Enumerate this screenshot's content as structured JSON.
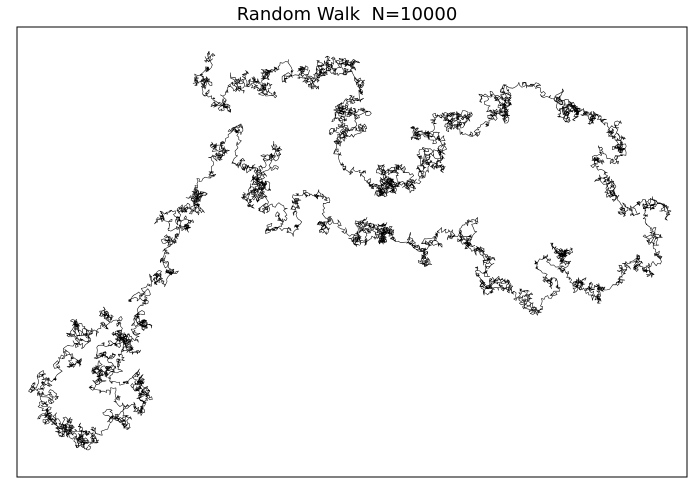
{
  "chart_data": {
    "type": "line",
    "title": "Random Walk  N=10000",
    "xlabel": "",
    "ylabel": "",
    "n_steps": 10000,
    "axis_ticks": "none",
    "grid": false,
    "legend": "none",
    "series": [
      {
        "line_color": "#000000",
        "description_points": [
          [
            -3.4,
            4.1
          ],
          [
            -3.1,
            3.3
          ],
          [
            -2.7,
            3.7
          ],
          [
            -2.3,
            3.9
          ],
          [
            -1.4,
            3.6
          ],
          [
            -1.2,
            4.0
          ],
          [
            -0.6,
            3.8
          ],
          [
            -0.9,
            3.1
          ],
          [
            -1.0,
            2.6
          ],
          [
            -0.7,
            2.0
          ],
          [
            -0.2,
            1.6
          ],
          [
            0.0,
            1.9
          ],
          [
            0.4,
            1.7
          ],
          [
            0.8,
            2.0
          ],
          [
            0.5,
            2.6
          ],
          [
            1.2,
            3.0
          ],
          [
            1.6,
            2.7
          ],
          [
            2.1,
            3.1
          ],
          [
            2.6,
            3.6
          ],
          [
            3.2,
            3.3
          ],
          [
            3.8,
            3.0
          ],
          [
            4.3,
            2.4
          ],
          [
            4.0,
            1.8
          ],
          [
            4.6,
            1.3
          ],
          [
            4.9,
            0.6
          ],
          [
            4.4,
            0.1
          ],
          [
            3.8,
            -0.3
          ],
          [
            3.3,
            0.3
          ],
          [
            2.8,
            0.0
          ],
          [
            2.5,
            -0.7
          ],
          [
            2.0,
            -0.2
          ],
          [
            1.6,
            0.4
          ],
          [
            1.0,
            0.8
          ],
          [
            0.5,
            0.5
          ],
          [
            -0.1,
            0.9
          ],
          [
            -0.6,
            0.7
          ],
          [
            -1.2,
            1.0
          ],
          [
            -1.8,
            1.4
          ],
          [
            -2.3,
            1.2
          ],
          [
            -2.6,
            1.7
          ],
          [
            -2.2,
            2.3
          ],
          [
            -2.8,
            2.5
          ],
          [
            -3.3,
            2.2
          ],
          [
            -3.6,
            1.5
          ],
          [
            -3.9,
            0.8
          ],
          [
            -4.2,
            0.2
          ],
          [
            -4.6,
            -0.4
          ],
          [
            -4.8,
            -1.1
          ],
          [
            -5.2,
            -1.7
          ],
          [
            -5.6,
            -2.3
          ],
          [
            -5.0,
            -2.8
          ],
          [
            -4.7,
            -2.1
          ],
          [
            -4.9,
            -1.5
          ],
          [
            -5.4,
            -0.9
          ],
          [
            -5.9,
            -1.4
          ],
          [
            -6.2,
            -2.0
          ],
          [
            -6.5,
            -2.6
          ],
          [
            -6.1,
            -3.1
          ],
          [
            -5.7,
            -3.4
          ],
          [
            -5.3,
            -3.0
          ]
        ]
      }
    ]
  }
}
